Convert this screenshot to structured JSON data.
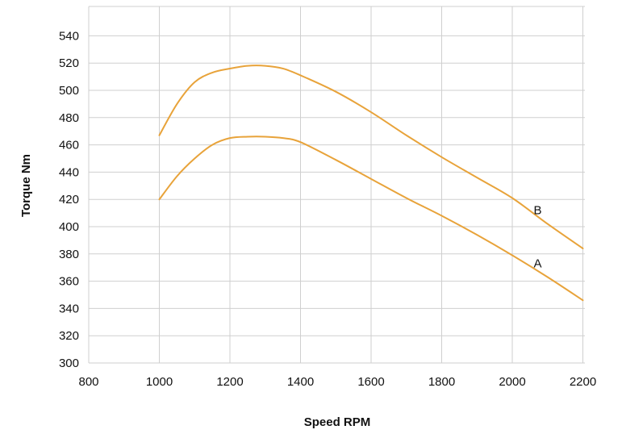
{
  "chart_data": {
    "type": "line",
    "title": "",
    "xlabel": "Speed RPM",
    "ylabel": "Torque Nm",
    "xlim": [
      800,
      2200
    ],
    "ylim": [
      300,
      540
    ],
    "xticks": [
      800,
      1000,
      1200,
      1400,
      1600,
      1800,
      2000,
      2200
    ],
    "yticks": [
      300,
      320,
      340,
      360,
      380,
      400,
      420,
      440,
      460,
      480,
      500,
      520,
      540
    ],
    "xtick_labels": [
      "800",
      "1000",
      "1200",
      "1400",
      "1600",
      "1800",
      "2000",
      "2200"
    ],
    "ytick_labels": [
      "300",
      "320",
      "340",
      "360",
      "380",
      "400",
      "420",
      "440",
      "460",
      "480",
      "500",
      "520",
      "540"
    ],
    "grid": true,
    "line_color": "#e8a33a",
    "grid_color": "#cfcfcf",
    "series": [
      {
        "name": "A",
        "x": [
          1000,
          1050,
          1100,
          1150,
          1200,
          1250,
          1300,
          1350,
          1400,
          1500,
          1600,
          1700,
          1800,
          1900,
          2000,
          2100,
          2200
        ],
        "y": [
          420,
          437,
          450,
          460,
          465,
          466,
          466,
          465,
          462,
          449,
          435,
          421,
          408,
          394,
          379,
          363,
          346
        ]
      },
      {
        "name": "B",
        "x": [
          1000,
          1050,
          1100,
          1150,
          1200,
          1250,
          1300,
          1350,
          1400,
          1500,
          1600,
          1700,
          1800,
          1900,
          2000,
          2100,
          2200
        ],
        "y": [
          467,
          490,
          506,
          513,
          516,
          518,
          518,
          516,
          511,
          499,
          484,
          467,
          451,
          436,
          421,
          402,
          384
        ]
      }
    ]
  }
}
